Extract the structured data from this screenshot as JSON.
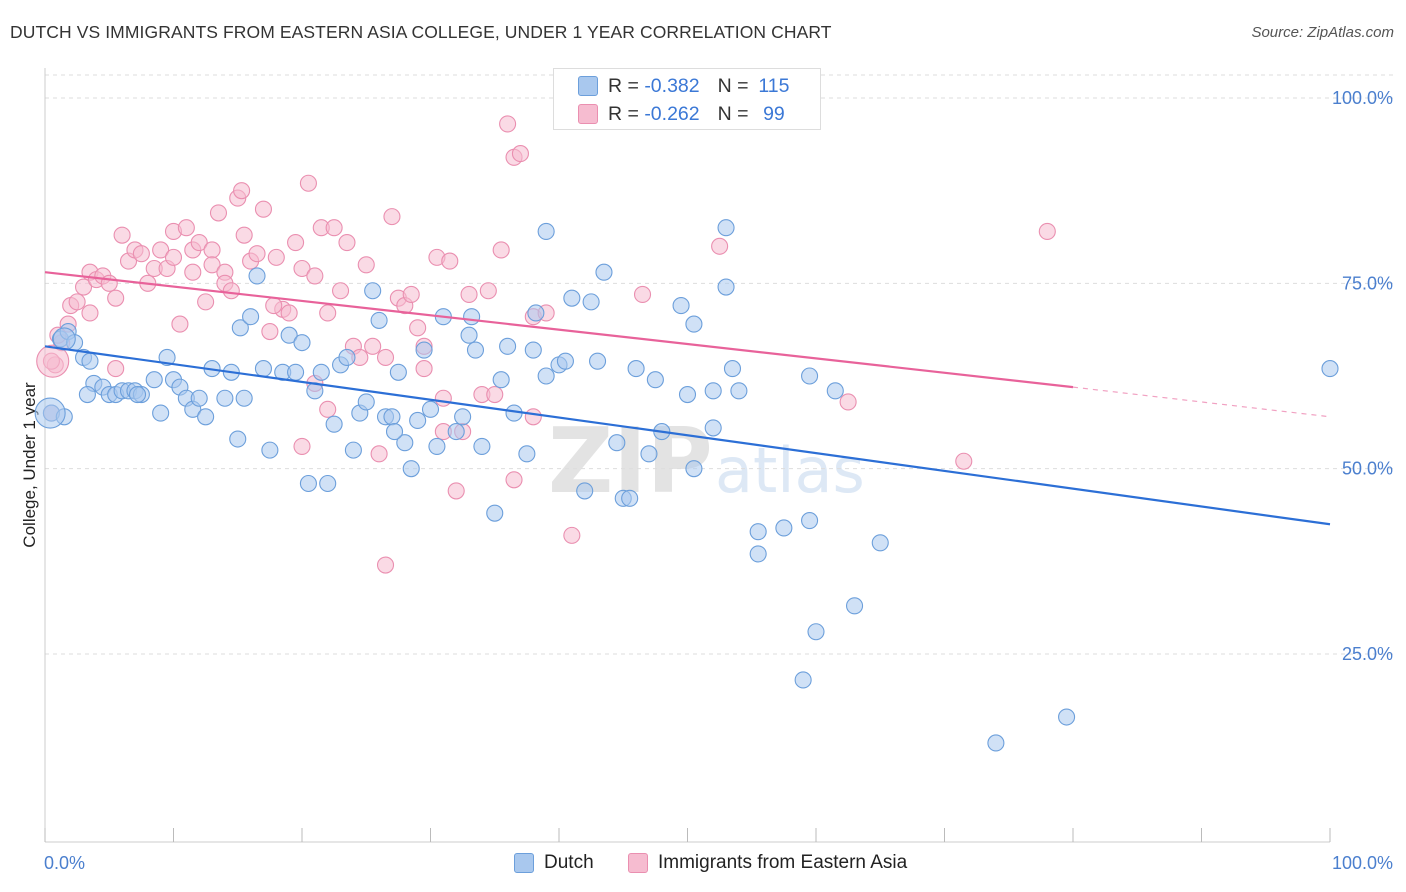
{
  "header": {
    "title": "DUTCH VS IMMIGRANTS FROM EASTERN ASIA COLLEGE, UNDER 1 YEAR CORRELATION CHART",
    "source": "Source: ZipAtlas.com"
  },
  "watermark": {
    "zip": "ZIP",
    "atlas": "atlas"
  },
  "colors": {
    "dutch_fill": "#a9c8ee",
    "dutch_stroke": "#6c9fdb",
    "dutch_line": "#2c6fd6",
    "asia_fill": "#f6bcd0",
    "asia_stroke": "#ea8fb0",
    "asia_line": "#e8629a",
    "grid": "#dddddd",
    "tick_label": "#4b7fce"
  },
  "legend_top": {
    "rows": [
      {
        "series": "dutch",
        "r_label": "R =",
        "r_value": "-0.382",
        "n_label": "N =",
        "n_value": "115"
      },
      {
        "series": "asia",
        "r_label": "R =",
        "r_value": "-0.262",
        "n_label": "N =",
        "n_value": "99"
      }
    ]
  },
  "chart_data": {
    "type": "scatter",
    "title": "DUTCH VS IMMIGRANTS FROM EASTERN ASIA COLLEGE, UNDER 1 YEAR CORRELATION CHART",
    "xlabel": "",
    "ylabel": "College, Under 1 year",
    "xlim": [
      0,
      100
    ],
    "ylim": [
      0,
      105
    ],
    "x_tick_labels": [
      "0.0%",
      "100.0%"
    ],
    "y_ticks": [
      25,
      50,
      75,
      100
    ],
    "y_tick_labels": [
      "25.0%",
      "50.0%",
      "75.0%",
      "100.0%"
    ],
    "grid": true,
    "legend_position": "bottom",
    "series": [
      {
        "name": "Dutch",
        "key": "dutch",
        "trend": {
          "x0": 0,
          "y0": 66.5,
          "x1": 100,
          "y1": 42.5
        },
        "points": [
          [
            0.5,
            57.5
          ],
          [
            1.2,
            67.5
          ],
          [
            1.8,
            68.5
          ],
          [
            2.3,
            67.0
          ],
          [
            3.0,
            65.0
          ],
          [
            3.5,
            64.5
          ],
          [
            3.8,
            61.5
          ],
          [
            4.5,
            61.0
          ],
          [
            5.0,
            60.0
          ],
          [
            5.5,
            60.0
          ],
          [
            6.0,
            60.5
          ],
          [
            6.5,
            60.5
          ],
          [
            7.0,
            60.5
          ],
          [
            7.5,
            60.0
          ],
          [
            8.5,
            62.0
          ],
          [
            9.0,
            57.5
          ],
          [
            9.5,
            65.0
          ],
          [
            10.0,
            62.0
          ],
          [
            10.5,
            61.0
          ],
          [
            11.0,
            59.5
          ],
          [
            11.5,
            58.0
          ],
          [
            12.5,
            57.0
          ],
          [
            12.0,
            59.5
          ],
          [
            13.0,
            63.5
          ],
          [
            14.0,
            59.5
          ],
          [
            14.5,
            63.0
          ],
          [
            15.0,
            54.0
          ],
          [
            15.2,
            69.0
          ],
          [
            15.5,
            59.5
          ],
          [
            16.0,
            70.5
          ],
          [
            17.0,
            63.5
          ],
          [
            16.5,
            76.0
          ],
          [
            17.5,
            52.5
          ],
          [
            18.5,
            63.0
          ],
          [
            19.0,
            68.0
          ],
          [
            19.5,
            63.0
          ],
          [
            20.0,
            67.0
          ],
          [
            20.5,
            48.0
          ],
          [
            21.0,
            60.5
          ],
          [
            22.0,
            48.0
          ],
          [
            21.5,
            63.0
          ],
          [
            22.5,
            56.0
          ],
          [
            23.0,
            64.0
          ],
          [
            23.5,
            65.0
          ],
          [
            24.0,
            52.5
          ],
          [
            24.5,
            57.5
          ],
          [
            25.0,
            59.0
          ],
          [
            25.5,
            74.0
          ],
          [
            26.0,
            70.0
          ],
          [
            26.5,
            57.0
          ],
          [
            27.0,
            57.0
          ],
          [
            27.5,
            63.0
          ],
          [
            28.0,
            53.5
          ],
          [
            28.5,
            50.0
          ],
          [
            29.0,
            56.5
          ],
          [
            29.5,
            66.0
          ],
          [
            30.0,
            58.0
          ],
          [
            30.5,
            53.0
          ],
          [
            31.0,
            70.5
          ],
          [
            32.0,
            55.0
          ],
          [
            32.5,
            57.0
          ],
          [
            33.0,
            68.0
          ],
          [
            33.5,
            66.0
          ],
          [
            34.0,
            53.0
          ],
          [
            35.0,
            44.0
          ],
          [
            35.5,
            62.0
          ],
          [
            36.0,
            66.5
          ],
          [
            36.5,
            57.5
          ],
          [
            37.5,
            52.0
          ],
          [
            38.0,
            66.0
          ],
          [
            39.0,
            82.0
          ],
          [
            39.0,
            62.5
          ],
          [
            40.0,
            64.0
          ],
          [
            40.5,
            64.5
          ],
          [
            41.0,
            73.0
          ],
          [
            42.0,
            47.0
          ],
          [
            42.5,
            72.5
          ],
          [
            43.0,
            64.5
          ],
          [
            43.5,
            76.5
          ],
          [
            44.5,
            53.5
          ],
          [
            45.0,
            46.0
          ],
          [
            45.5,
            46.0
          ],
          [
            46.0,
            63.5
          ],
          [
            47.0,
            52.0
          ],
          [
            47.5,
            62.0
          ],
          [
            48.0,
            55.0
          ],
          [
            49.5,
            72.0
          ],
          [
            50.0,
            60.0
          ],
          [
            50.5,
            50.0
          ],
          [
            50.5,
            69.5
          ],
          [
            52.0,
            55.5
          ],
          [
            52.0,
            60.5
          ],
          [
            53.0,
            82.5
          ],
          [
            53.0,
            74.5
          ],
          [
            53.5,
            63.5
          ],
          [
            54.0,
            60.5
          ],
          [
            55.5,
            41.5
          ],
          [
            55.5,
            38.5
          ],
          [
            57.5,
            42.0
          ],
          [
            59.0,
            21.5
          ],
          [
            59.5,
            43.0
          ],
          [
            59.5,
            62.5
          ],
          [
            60.0,
            28.0
          ],
          [
            61.5,
            60.5
          ],
          [
            63.0,
            31.5
          ],
          [
            65.0,
            40.0
          ],
          [
            74.0,
            13.0
          ],
          [
            79.5,
            16.5
          ],
          [
            100.0,
            63.5
          ],
          [
            1.5,
            57.0
          ],
          [
            3.3,
            60.0
          ],
          [
            7.2,
            60.0
          ],
          [
            27.2,
            55.0
          ],
          [
            33.2,
            70.5
          ],
          [
            38.2,
            71.0
          ]
        ]
      },
      {
        "name": "Immigrants from Eastern Asia",
        "key": "asia",
        "trend": {
          "x0": 0,
          "y0": 76.5,
          "x1": 80,
          "y1": 61.0
        },
        "trend_dashed": {
          "x0": 80,
          "y0": 61.0,
          "x1": 100,
          "y1": 57.0
        },
        "points": [
          [
            0.5,
            57.5
          ],
          [
            0.8,
            64.0
          ],
          [
            1.3,
            67.0
          ],
          [
            1.8,
            69.5
          ],
          [
            2.0,
            72.0
          ],
          [
            2.5,
            72.5
          ],
          [
            3.0,
            74.5
          ],
          [
            3.5,
            76.5
          ],
          [
            3.5,
            71.0
          ],
          [
            4.0,
            75.5
          ],
          [
            4.5,
            76.0
          ],
          [
            5.0,
            75.0
          ],
          [
            5.5,
            73.0
          ],
          [
            5.5,
            63.5
          ],
          [
            6.0,
            81.5
          ],
          [
            6.5,
            78.0
          ],
          [
            7.0,
            79.5
          ],
          [
            7.5,
            79.0
          ],
          [
            8.0,
            75.0
          ],
          [
            8.5,
            77.0
          ],
          [
            9.0,
            79.5
          ],
          [
            9.5,
            77.0
          ],
          [
            10.0,
            78.5
          ],
          [
            10.0,
            82.0
          ],
          [
            10.5,
            69.5
          ],
          [
            11.0,
            82.5
          ],
          [
            11.5,
            79.5
          ],
          [
            11.5,
            76.5
          ],
          [
            12.0,
            80.5
          ],
          [
            12.5,
            72.5
          ],
          [
            13.0,
            79.5
          ],
          [
            13.0,
            77.5
          ],
          [
            13.5,
            84.5
          ],
          [
            14.0,
            76.5
          ],
          [
            14.0,
            75.0
          ],
          [
            14.5,
            74.0
          ],
          [
            15.0,
            86.5
          ],
          [
            15.3,
            87.5
          ],
          [
            15.5,
            81.5
          ],
          [
            16.0,
            78.0
          ],
          [
            16.5,
            79.0
          ],
          [
            17.0,
            85.0
          ],
          [
            17.5,
            68.5
          ],
          [
            18.0,
            78.5
          ],
          [
            18.5,
            71.5
          ],
          [
            19.0,
            71.0
          ],
          [
            19.5,
            80.5
          ],
          [
            20.0,
            77.0
          ],
          [
            20.0,
            53.0
          ],
          [
            20.5,
            88.5
          ],
          [
            21.0,
            76.0
          ],
          [
            21.0,
            61.5
          ],
          [
            21.5,
            82.5
          ],
          [
            22.0,
            71.0
          ],
          [
            22.5,
            82.5
          ],
          [
            23.0,
            74.0
          ],
          [
            23.5,
            80.5
          ],
          [
            24.0,
            66.5
          ],
          [
            24.5,
            65.0
          ],
          [
            25.0,
            77.5
          ],
          [
            25.5,
            66.5
          ],
          [
            26.0,
            52.0
          ],
          [
            26.5,
            37.0
          ],
          [
            26.5,
            65.0
          ],
          [
            27.0,
            84.0
          ],
          [
            27.5,
            73.0
          ],
          [
            28.0,
            72.0
          ],
          [
            28.5,
            73.5
          ],
          [
            29.0,
            69.0
          ],
          [
            29.5,
            63.5
          ],
          [
            29.5,
            66.5
          ],
          [
            30.5,
            78.5
          ],
          [
            31.0,
            55.0
          ],
          [
            31.0,
            59.5
          ],
          [
            31.5,
            78.0
          ],
          [
            32.0,
            47.0
          ],
          [
            32.5,
            55.0
          ],
          [
            33.0,
            73.5
          ],
          [
            34.0,
            60.0
          ],
          [
            34.5,
            74.0
          ],
          [
            35.5,
            79.5
          ],
          [
            35.0,
            60.0
          ],
          [
            36.0,
            96.5
          ],
          [
            36.5,
            92.0
          ],
          [
            36.5,
            48.5
          ],
          [
            37.0,
            92.5
          ],
          [
            38.0,
            70.5
          ],
          [
            38.0,
            57.0
          ],
          [
            39.0,
            71.0
          ],
          [
            41.0,
            41.0
          ],
          [
            46.5,
            73.5
          ],
          [
            52.5,
            80.0
          ],
          [
            62.5,
            59.0
          ],
          [
            71.5,
            51.0
          ],
          [
            78.0,
            82.0
          ],
          [
            1.0,
            68.0
          ],
          [
            17.8,
            72.0
          ],
          [
            22.0,
            58.0
          ],
          [
            0.5,
            64.5
          ]
        ]
      }
    ]
  }
}
